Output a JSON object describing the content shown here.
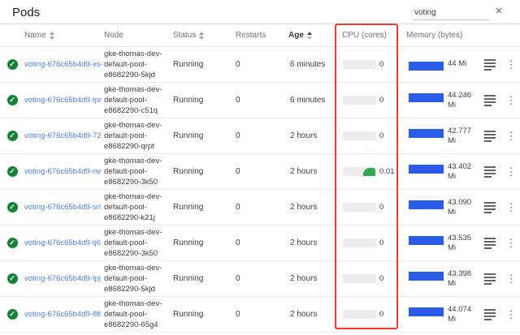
{
  "page": {
    "title": "Pods"
  },
  "search": {
    "value": "voting",
    "close_icon": "×"
  },
  "table": {
    "columns": {
      "name": "Name",
      "node": "Node",
      "status": "Status",
      "restarts": "Restarts",
      "age": "Age",
      "cpu": "CPU (cores)",
      "memory": "Memory (bytes)"
    },
    "rows": [
      {
        "name": "voting-676c65b4d9-xs-",
        "node": "gke-thomas-dev-\ndefault-pool-\ne8682290-5kjd",
        "status": "Running",
        "restarts": "0",
        "age": "6 minutes",
        "cpu": "0",
        "cpu_active": false,
        "memory": "44 Mi"
      },
      {
        "name": "voting-676c65b4d9-tpr",
        "node": "gke-thomas-dev-\ndefault-pool-\ne8682290-c51q",
        "status": "Running",
        "restarts": "0",
        "age": "6 minutes",
        "cpu": "0",
        "cpu_active": false,
        "memory": "44.246 Mi"
      },
      {
        "name": "voting-676c65b4d9-72",
        "node": "gke-thomas-dev-\ndefault-pool-\ne8682290-qrpt",
        "status": "Running",
        "restarts": "0",
        "age": "2 hours",
        "cpu": "0",
        "cpu_active": false,
        "memory": "42.777 Mi"
      },
      {
        "name": "voting-676c65b4d9-nv",
        "node": "gke-thomas-dev-\ndefault-pool-\ne8682290-3k50",
        "status": "Running",
        "restarts": "0",
        "age": "2 hours",
        "cpu": "0.01",
        "cpu_active": true,
        "memory": "43.402 Mi"
      },
      {
        "name": "voting-676c65b4d9-srl",
        "node": "gke-thomas-dev-\ndefault-pool-\ne8682290-k21j",
        "status": "Running",
        "restarts": "0",
        "age": "2 hours",
        "cpu": "0",
        "cpu_active": false,
        "memory": "43.090 Mi"
      },
      {
        "name": "voting-676c65b4d9-tj6",
        "node": "gke-thomas-dev-\ndefault-pool-\ne8682290-3k50",
        "status": "Running",
        "restarts": "0",
        "age": "2 hours",
        "cpu": "0",
        "cpu_active": false,
        "memory": "43.535 Mi"
      },
      {
        "name": "voting-676c65b4d9-tpj",
        "node": "gke-thomas-dev-\ndefault-pool-\ne8682290-5kjd",
        "status": "Running",
        "restarts": "0",
        "age": "2 hours",
        "cpu": "0",
        "cpu_active": false,
        "memory": "43.398 Mi"
      },
      {
        "name": "voting-676c65b4d9-8fl",
        "node": "gke-thomas-dev-\ndefault-pool-\ne8682290-65g4",
        "status": "Running",
        "restarts": "0",
        "age": "2 hours",
        "cpu": "0",
        "cpu_active": false,
        "memory": "44.074 Mi"
      }
    ]
  },
  "annotation": {
    "type": "red-rectangle",
    "target": "cpu-column"
  },
  "colors": {
    "link": "#4d7de8",
    "bar_blue": "#2b5de8",
    "check_green": "#188038",
    "cpu_green": "#34a853",
    "highlight_red": "#f23b2f",
    "text_dark": "#3c4043",
    "text_gray": "#757575"
  }
}
